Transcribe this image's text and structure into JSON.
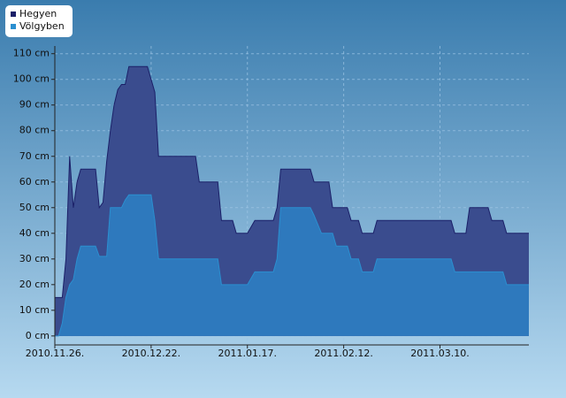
{
  "chart_data": {
    "type": "area",
    "x": [
      "2010-11-26",
      "2010-11-27",
      "2010-11-28",
      "2010-11-29",
      "2010-11-30",
      "2010-12-01",
      "2010-12-02",
      "2010-12-03",
      "2010-12-07",
      "2010-12-08",
      "2010-12-09",
      "2010-12-10",
      "2010-12-11",
      "2010-12-12",
      "2010-12-13",
      "2010-12-14",
      "2010-12-15",
      "2010-12-16",
      "2010-12-21",
      "2010-12-22",
      "2010-12-23",
      "2010-12-24",
      "2011-01-03",
      "2011-01-04",
      "2011-01-09",
      "2011-01-10",
      "2011-01-13",
      "2011-01-14",
      "2011-01-17",
      "2011-01-19",
      "2011-01-24",
      "2011-01-25",
      "2011-01-26",
      "2011-02-03",
      "2011-02-04",
      "2011-02-06",
      "2011-02-08",
      "2011-02-09",
      "2011-02-10",
      "2011-02-13",
      "2011-02-14",
      "2011-02-16",
      "2011-02-17",
      "2011-02-20",
      "2011-02-21",
      "2011-03-13",
      "2011-03-14",
      "2011-03-17",
      "2011-03-18",
      "2011-03-23",
      "2011-03-24",
      "2011-03-27",
      "2011-03-28",
      "2011-04-03"
    ],
    "series": [
      {
        "name": "Hegyen",
        "color": "#1b2068",
        "fill": "#3a4c8e",
        "values": [
          15,
          15,
          15,
          30,
          70,
          50,
          60,
          65,
          65,
          50,
          52,
          68,
          80,
          90,
          96,
          98,
          98,
          105,
          105,
          100,
          95,
          70,
          70,
          60,
          60,
          45,
          45,
          40,
          40,
          45,
          45,
          50,
          65,
          65,
          60,
          60,
          60,
          50,
          50,
          50,
          45,
          45,
          40,
          40,
          45,
          45,
          40,
          40,
          50,
          50,
          45,
          45,
          40,
          40
        ]
      },
      {
        "name": "Völgyben",
        "color": "#2b8fd0",
        "fill": "#2e79bd",
        "values": [
          0,
          0,
          5,
          15,
          20,
          22,
          30,
          35,
          35,
          31,
          31,
          31,
          50,
          50,
          50,
          50,
          53,
          55,
          55,
          55,
          45,
          30,
          30,
          30,
          30,
          20,
          20,
          20,
          20,
          25,
          25,
          30,
          50,
          50,
          47,
          40,
          40,
          40,
          35,
          35,
          30,
          30,
          25,
          25,
          30,
          30,
          25,
          25,
          25,
          25,
          25,
          25,
          20,
          20
        ]
      }
    ],
    "xlim": [
      "2010-11-26",
      "2011-04-03"
    ],
    "xticks": [
      {
        "value": "2010-11-26",
        "label": "2010.11.26."
      },
      {
        "value": "2010-12-22",
        "label": "2010.12.22."
      },
      {
        "value": "2011-01-17",
        "label": "2011.01.17."
      },
      {
        "value": "2011-02-12",
        "label": "2011.02.12."
      },
      {
        "value": "2011-03-10",
        "label": "2011.03.10."
      }
    ],
    "ylim": [
      -3.5,
      113
    ],
    "yticks": [
      {
        "value": 0,
        "label": "0 cm"
      },
      {
        "value": 10,
        "label": "10 cm"
      },
      {
        "value": 20,
        "label": "20 cm"
      },
      {
        "value": 30,
        "label": "30 cm"
      },
      {
        "value": 40,
        "label": "40 cm"
      },
      {
        "value": 50,
        "label": "50 cm"
      },
      {
        "value": 60,
        "label": "60 cm"
      },
      {
        "value": 70,
        "label": "70 cm"
      },
      {
        "value": 80,
        "label": "80 cm"
      },
      {
        "value": 90,
        "label": "90 cm"
      },
      {
        "value": 100,
        "label": "100 cm"
      },
      {
        "value": 110,
        "label": "110 cm"
      }
    ],
    "grid": true,
    "legend": "top-left"
  }
}
